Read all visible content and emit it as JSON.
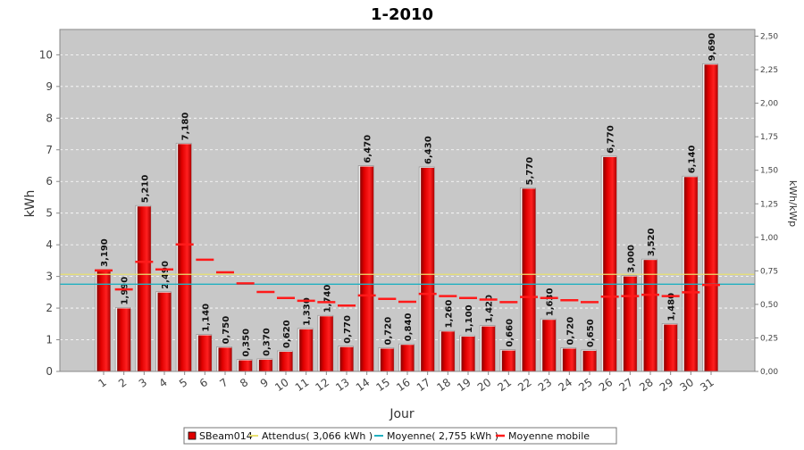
{
  "chart_data": {
    "type": "bar",
    "title": "1-2010",
    "xlabel": "Jour",
    "ylabel": "kWh",
    "y2label": "kWh/kWp",
    "ylim": [
      0,
      10.8
    ],
    "y2lim": [
      0,
      2.55
    ],
    "yticks": [
      0,
      1,
      2,
      3,
      4,
      5,
      6,
      7,
      8,
      9,
      10
    ],
    "y2ticks": [
      "0,00",
      "0,25",
      "0,50",
      "0,75",
      "1,00",
      "1,25",
      "1,50",
      "1,75",
      "2,00",
      "2,25",
      "2,50"
    ],
    "grid": true,
    "legend_position": "bottom",
    "categories": [
      "1",
      "2",
      "3",
      "4",
      "5",
      "6",
      "7",
      "8",
      "9",
      "10",
      "11",
      "12",
      "13",
      "14",
      "15",
      "16",
      "17",
      "18",
      "19",
      "20",
      "21",
      "22",
      "23",
      "24",
      "25",
      "26",
      "27",
      "28",
      "29",
      "30",
      "31"
    ],
    "series": [
      {
        "name": "SBeam014",
        "type": "bar",
        "color": "#e00000",
        "values": [
          3.19,
          1.99,
          5.21,
          2.49,
          7.18,
          1.14,
          0.75,
          0.35,
          0.37,
          0.62,
          1.33,
          1.74,
          0.77,
          6.47,
          0.72,
          0.84,
          6.43,
          1.26,
          1.1,
          1.42,
          0.66,
          5.77,
          1.63,
          0.72,
          0.65,
          6.77,
          3.0,
          3.52,
          1.48,
          6.14,
          9.69
        ],
        "labels": [
          "3,190",
          "1,990",
          "5,210",
          "2,490",
          "7,180",
          "1,140",
          "0,750",
          "0,350",
          "0,370",
          "0,620",
          "1,330",
          "1,740",
          "0,770",
          "6,470",
          "0,720",
          "0,840",
          "6,430",
          "1,260",
          "1,100",
          "1,420",
          "0,660",
          "5,770",
          "1,630",
          "0,720",
          "0,650",
          "6,770",
          "3,000",
          "3,520",
          "1,480",
          "6,140",
          "9,690"
        ]
      },
      {
        "name": "Attendus( 3,066 kWh )",
        "type": "hline",
        "color": "#e8e070",
        "value": 3.066
      },
      {
        "name": "Moyenne( 2,755 kWh )",
        "type": "hline",
        "color": "#20b0c0",
        "value": 2.755
      },
      {
        "name": "Moyenne mobile",
        "type": "marker",
        "color": "#ff1a1a",
        "values": [
          3.19,
          2.59,
          3.46,
          3.22,
          4.01,
          3.53,
          3.13,
          2.78,
          2.51,
          2.32,
          2.23,
          2.19,
          2.08,
          2.4,
          2.29,
          2.2,
          2.45,
          2.38,
          2.32,
          2.27,
          2.19,
          2.35,
          2.32,
          2.25,
          2.19,
          2.36,
          2.38,
          2.42,
          2.38,
          2.5,
          2.73
        ]
      }
    ]
  }
}
